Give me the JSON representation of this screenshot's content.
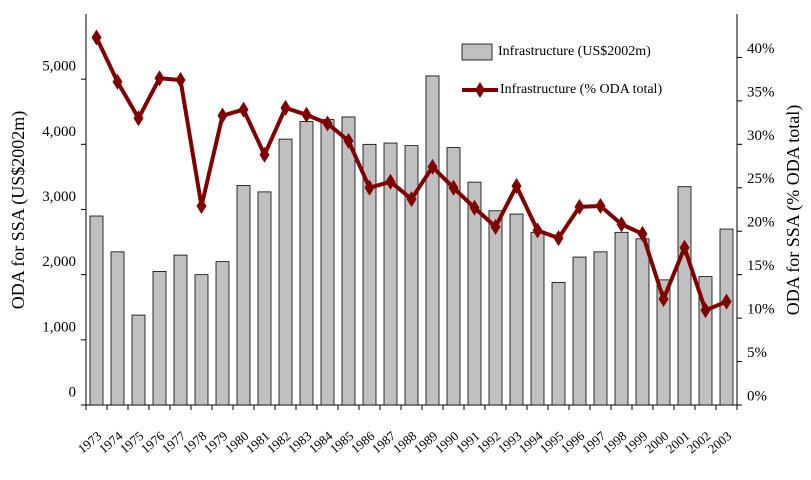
{
  "chart_data": {
    "type": "bar-line",
    "categories": [
      "1973",
      "1974",
      "1975",
      "1976",
      "1977",
      "1978",
      "1979",
      "1980",
      "1981",
      "1982",
      "1983",
      "1984",
      "1985",
      "1986",
      "1987",
      "1988",
      "1989",
      "1990",
      "1991",
      "1992",
      "1993",
      "1994",
      "1995",
      "1996",
      "1997",
      "1998",
      "1999",
      "2000",
      "2001",
      "2002",
      "2003"
    ],
    "series": [
      {
        "name": "Infrastructure (US$2002m)",
        "color": "#c0c0c0",
        "type": "bar",
        "values": [
          2900,
          2350,
          1380,
          2050,
          2300,
          2000,
          2200,
          3370,
          3270,
          4080,
          4350,
          4380,
          4420,
          4000,
          4020,
          3980,
          5050,
          3950,
          3420,
          2980,
          2930,
          2650,
          1880,
          2270,
          2350,
          2650,
          2550,
          1920,
          3350,
          1970,
          2700
        ]
      },
      {
        "name": "Infrastructure (% ODA total)",
        "color": "#800000",
        "type": "line",
        "axis": "y2",
        "values": [
          42.3,
          37.2,
          33,
          37.6,
          37.4,
          22.9,
          33.3,
          34,
          28.8,
          34.2,
          33.4,
          32.4,
          30.4,
          25,
          25.7,
          23.7,
          27.4,
          25,
          22.7,
          20.5,
          25.2,
          20.1,
          19.2,
          22.8,
          22.9,
          20.8,
          19.7,
          12.2,
          18.1,
          10.9,
          11.9
        ]
      }
    ],
    "y_label": "ODA for SSA (US$2002m)",
    "y2_label": "ODA for SSA (% ODA total)",
    "ylim": [
      0,
      6000
    ],
    "yticks": [
      0,
      {
        "value": 1000,
        "label": "1,000"
      },
      {
        "value": 2000,
        "label": "2,000"
      },
      {
        "value": 3000,
        "label": "3,000"
      },
      {
        "value": 4000,
        "label": "4,000"
      },
      {
        "value": 5000,
        "label": "5,000"
      }
    ],
    "y2lim": [
      0,
      45
    ],
    "y2ticks": [
      {
        "value": 0,
        "label": "0%"
      },
      {
        "value": 5,
        "label": "5%"
      },
      {
        "value": 10,
        "label": "10%"
      },
      {
        "value": 15,
        "label": "15%"
      },
      {
        "value": 20,
        "label": "20%"
      },
      {
        "value": 25,
        "label": "25%"
      },
      {
        "value": 30,
        "label": "30%"
      },
      {
        "value": 35,
        "label": "35%"
      },
      {
        "value": 40,
        "label": "40%"
      }
    ],
    "legend": "upper right"
  }
}
